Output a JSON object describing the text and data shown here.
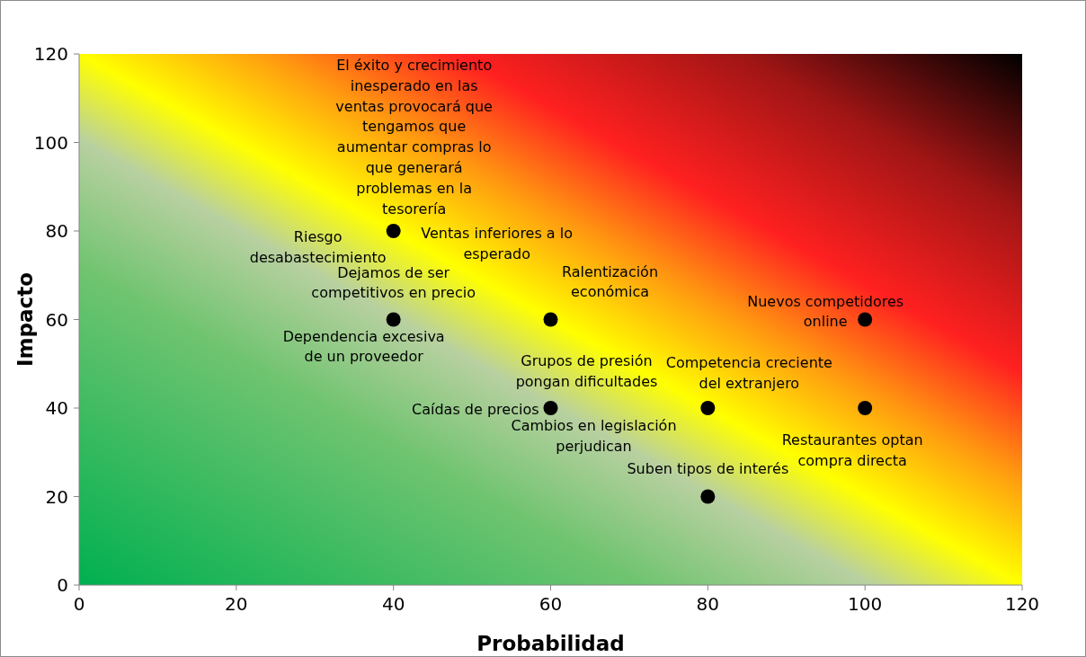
{
  "chart_data": {
    "type": "scatter",
    "xlabel": "Probabilidad",
    "ylabel": "Impacto",
    "xlim": [
      0,
      120
    ],
    "ylim": [
      0,
      120
    ],
    "xticks": [
      0,
      20,
      40,
      60,
      80,
      100,
      120
    ],
    "yticks": [
      0,
      20,
      40,
      60,
      80,
      100,
      120
    ],
    "grid": false,
    "marker": "circle",
    "series": [
      {
        "color": "#000000",
        "x": [
          40,
          40,
          60,
          100,
          60,
          80,
          100,
          80
        ],
        "values": [
          80,
          60,
          60,
          60,
          40,
          40,
          40,
          20
        ]
      }
    ],
    "annotations": [
      {
        "text": "El éxito y crecimiento\ninesperado en las\nventas provocará que\ntengamos que\naumentar compras lo\nque generará\nproblemas en la\ntesorería",
        "x": 40,
        "y": 80
      },
      {
        "text": "Riesgo\ndesabastecimiento",
        "x": 40,
        "y": 80
      },
      {
        "text": "Ventas inferiores a lo\nesperado",
        "x": 40,
        "y": 80
      },
      {
        "text": "Dejamos de ser\ncompetitivos en precio",
        "x": 40,
        "y": 60
      },
      {
        "text": "Dependencia excesiva\nde un proveedor",
        "x": 40,
        "y": 60
      },
      {
        "text": "Ralentización\neconómica",
        "x": 60,
        "y": 60
      },
      {
        "text": "Nuevos competidores\nonline",
        "x": 100,
        "y": 60
      },
      {
        "text": "Grupos de presión\npongan dificultades",
        "x": 60,
        "y": 40
      },
      {
        "text": "Competencia creciente\ndel extranjero",
        "x": 80,
        "y": 40
      },
      {
        "text": "Caídas de precios",
        "x": 60,
        "y": 40
      },
      {
        "text": "Cambios en legislación\nperjudican",
        "x": 60,
        "y": 40
      },
      {
        "text": "Restaurantes optan\ncompra directa",
        "x": 100,
        "y": 40
      },
      {
        "text": "Suben tipos de interés",
        "x": 80,
        "y": 20
      }
    ]
  }
}
